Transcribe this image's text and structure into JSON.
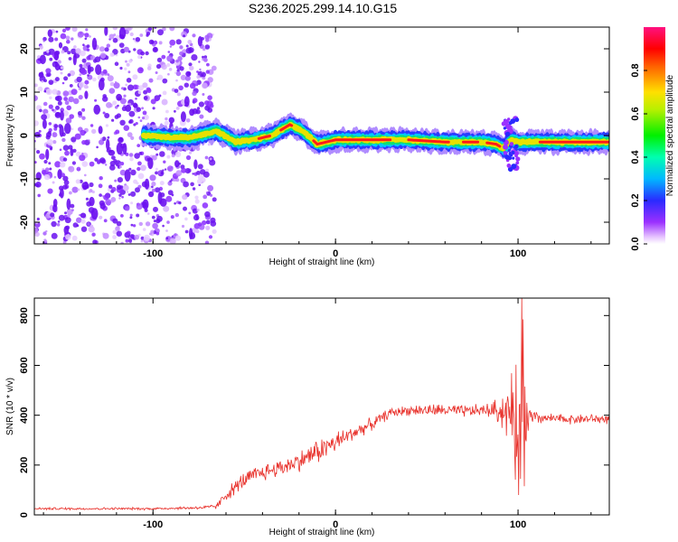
{
  "title": "S236.2025.299.14.10.G15",
  "colors": {
    "snr_line": "#e8302a",
    "spectrogram_base": "#7a1cff",
    "background": "#ffffff"
  },
  "chart_data": [
    {
      "type": "heatmap",
      "xlabel": "Height of straight line (km)",
      "ylabel": "Frequency (Hz)",
      "xlim": [
        -165,
        150
      ],
      "ylim": [
        -25,
        25
      ],
      "x_ticks": [
        "-100",
        "0",
        "100"
      ],
      "x_tick_values": [
        -100,
        0,
        100
      ],
      "y_ticks": [
        "-20",
        "-10",
        "0",
        "10",
        "20"
      ],
      "y_tick_values": [
        -20,
        -10,
        0,
        10,
        20
      ],
      "colorbar": {
        "label": "Normalized spectral amplitude",
        "range": [
          0,
          1
        ],
        "ticks": [
          "0.0",
          "0.2",
          "0.4",
          "0.6",
          "0.8"
        ],
        "tick_values": [
          0.0,
          0.2,
          0.4,
          0.6,
          0.8
        ],
        "colormap": "rainbow (white-violet-blue-cyan-green-yellow-red-magenta)"
      },
      "noise_region_x": [
        -165,
        -72
      ],
      "ridge": {
        "x": [
          -105,
          -90,
          -80,
          -70,
          -65,
          -55,
          -45,
          -35,
          -25,
          -20,
          -15,
          -10,
          -5,
          0,
          20,
          40,
          60,
          70,
          80,
          88,
          92,
          96,
          100,
          110,
          120,
          150
        ],
        "freq": [
          0,
          -0.5,
          -0.5,
          0.5,
          1.0,
          -1.5,
          -1.0,
          0.0,
          2.5,
          1.5,
          0.0,
          -2.0,
          -1.5,
          -1.0,
          -1.0,
          -1.0,
          -1.5,
          -1.5,
          -1.5,
          -2.0,
          -3.0,
          -1.0,
          -1.5,
          -1.5,
          -1.5,
          -1.5
        ]
      }
    },
    {
      "type": "line",
      "xlabel": "Height of straight line (km)",
      "ylabel": "SNR (10 * v/v)",
      "xlim": [
        -165,
        150
      ],
      "ylim": [
        0,
        870
      ],
      "x_ticks": [
        "-100",
        "0",
        "100"
      ],
      "x_tick_values": [
        -100,
        0,
        100
      ],
      "y_ticks": [
        "0",
        "200",
        "400",
        "600",
        "800"
      ],
      "y_tick_values": [
        0,
        200,
        400,
        600,
        800
      ],
      "series": [
        {
          "x": [
            -165,
            -130,
            -100,
            -80,
            -70,
            -65,
            -60,
            -50,
            -40,
            -30,
            -20,
            -10,
            0,
            10,
            20,
            30,
            40,
            50,
            60,
            70,
            80,
            85,
            90,
            95,
            100,
            103,
            106,
            110,
            120,
            130,
            140,
            150
          ],
          "values": [
            25,
            25,
            25,
            28,
            30,
            35,
            80,
            140,
            170,
            190,
            215,
            255,
            290,
            330,
            365,
            410,
            420,
            420,
            420,
            415,
            420,
            420,
            420,
            410,
            400,
            420,
            380,
            390,
            385,
            385,
            385,
            385
          ],
          "noise": [
            5,
            5,
            5,
            6,
            8,
            12,
            25,
            35,
            35,
            35,
            40,
            50,
            45,
            30,
            25,
            20,
            20,
            25,
            25,
            25,
            25,
            30,
            60,
            120,
            260,
            380,
            60,
            25,
            20,
            20,
            20,
            20
          ]
        }
      ]
    }
  ]
}
